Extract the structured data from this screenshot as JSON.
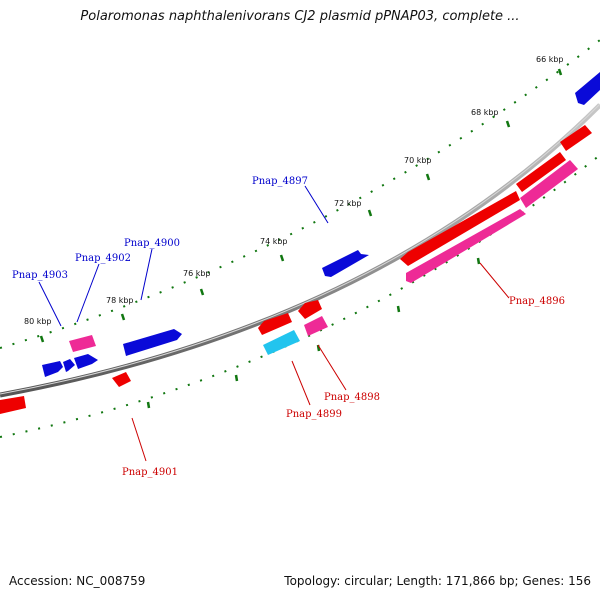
{
  "title": "Polaromonas naphthalenivorans CJ2 plasmid pPNAP03, complete ...",
  "footer": {
    "accession": "Accession: NC_008759",
    "summary": "Topology: circular; Length: 171,866 bp; Genes: 156"
  },
  "colors": {
    "forward_gene": "#0a0ad8",
    "reverse_gene": "#ee0000",
    "pink_gene": "#ee2a96",
    "cyan_gene": "#22c4ee",
    "backbone": "#888888",
    "tick": "#117711",
    "label_blue": "#0000cc",
    "label_red": "#cc0000"
  },
  "scale_labels": [
    "66 kbp",
    "68 kbp",
    "70 kbp",
    "72 kbp",
    "74 kbp",
    "76 kbp",
    "78 kbp",
    "80 kbp"
  ],
  "gene_labels": {
    "pnap_4897": "Pnap_4897",
    "pnap_4900": "Pnap_4900",
    "pnap_4902": "Pnap_4902",
    "pnap_4903": "Pnap_4903",
    "pnap_4896": "Pnap_4896",
    "pnap_4898": "Pnap_4898",
    "pnap_4899": "Pnap_4899",
    "pnap_4901": "Pnap_4901"
  }
}
